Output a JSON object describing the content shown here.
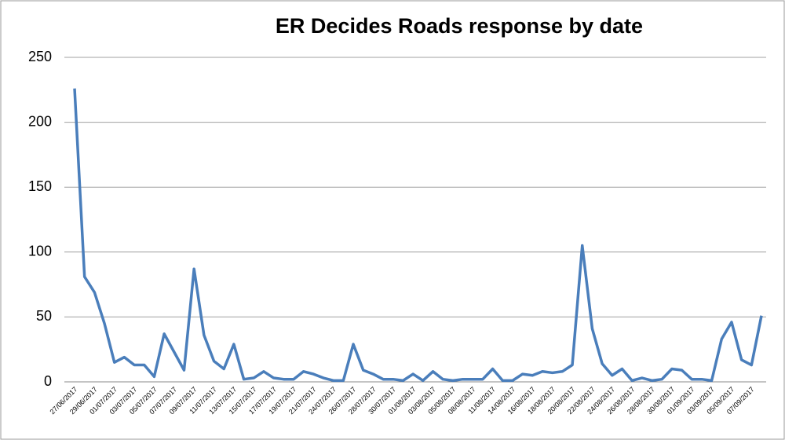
{
  "chart_data": {
    "type": "line",
    "title": "ER Decides Roads response by date",
    "categories": [
      "27/06/2017",
      null,
      "29/06/2017",
      null,
      "01/07/2017",
      null,
      "03/07/2017",
      null,
      "05/07/2017",
      null,
      "07/07/2017",
      null,
      "09/07/2017",
      null,
      "11/07/2017",
      null,
      "13/07/2017",
      null,
      "15/07/2017",
      null,
      "17/07/2017",
      null,
      "19/07/2017",
      null,
      "21/07/2017",
      null,
      "24/07/2017",
      null,
      "26/07/2017",
      null,
      "28/07/2017",
      null,
      "30/07/2017",
      null,
      "01/08/2017",
      null,
      "03/08/2017",
      null,
      "05/08/2017",
      null,
      "08/08/2017",
      null,
      "11/08/2017",
      null,
      "14/08/2017",
      null,
      "16/08/2017",
      null,
      "18/08/2017",
      null,
      "20/08/2017",
      null,
      "22/08/2017",
      null,
      "24/08/2017",
      null,
      "26/08/2017",
      null,
      "28/08/2017",
      null,
      "30/08/2017",
      null,
      "01/09/2017",
      null,
      "03/09/2017",
      null,
      "05/09/2017",
      null,
      "07/09/2017",
      null
    ],
    "series": [
      {
        "color": "#4a7ebb",
        "values": [
          226,
          81,
          69,
          45,
          15,
          19,
          13,
          13,
          4,
          37,
          23,
          9,
          87,
          36,
          16,
          10,
          29,
          2,
          3,
          8,
          3,
          2,
          2,
          8,
          6,
          3,
          1,
          1,
          29,
          9,
          6,
          2,
          2,
          1,
          6,
          1,
          8,
          2,
          1,
          2,
          2,
          2,
          10,
          1,
          1,
          6,
          5,
          8,
          7,
          8,
          13,
          105,
          41,
          14,
          5,
          10,
          1,
          3,
          1,
          2,
          10,
          9,
          2,
          2,
          1,
          33,
          46,
          17,
          13,
          51
        ]
      }
    ],
    "ylim": [
      0,
      250
    ],
    "yticks": [
      0,
      50,
      100,
      150,
      200,
      250
    ],
    "grid": true
  }
}
